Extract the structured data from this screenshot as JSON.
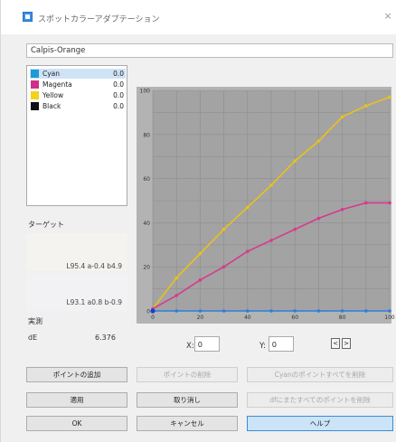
{
  "window": {
    "title": "スポットカラーアダプテーション",
    "close_glyph": "×"
  },
  "spot_name": "Calpis-Orange",
  "inks": [
    {
      "name": "Cyan",
      "value": "0.0",
      "color": "#1e9ad6",
      "selected": true
    },
    {
      "name": "Magenta",
      "value": "0.0",
      "color": "#d12e8a",
      "selected": false
    },
    {
      "name": "Yellow",
      "value": "0.0",
      "color": "#f2d21a",
      "selected": false
    },
    {
      "name": "Black",
      "value": "0.0",
      "color": "#111111",
      "selected": false
    }
  ],
  "target": {
    "label": "ターゲット",
    "lab_1": "L95.4 a-0.4 b4.9",
    "lab_2": "L93.1 a0.8 b-0.9"
  },
  "actual": {
    "label": "実測",
    "delta_label": "dE",
    "delta_value": "6.376"
  },
  "coords": {
    "x_label": "X:",
    "x_value": "0",
    "y_label": "Y:",
    "y_value": "0",
    "prev_glyph": "<",
    "next_glyph": ">"
  },
  "buttons": {
    "add_point": "ポイントの追加",
    "delete_point": "ポイントの削除",
    "clear_cyan_points": "Cyanのポイントすべてを削除",
    "apply": "適用",
    "undo": "取り消し",
    "clear_all_points": "dfにまたすべてのポイントを削除",
    "ok": "OK",
    "cancel": "キャンセル",
    "help": "ヘルプ"
  },
  "chart_data": {
    "type": "line",
    "xlim": [
      0,
      100
    ],
    "ylim": [
      0,
      100
    ],
    "x_ticks": [
      0,
      20,
      40,
      60,
      80,
      100
    ],
    "y_ticks": [
      0,
      20,
      40,
      60,
      80,
      100
    ],
    "x_tick_labels": [
      "0",
      "20",
      "40",
      "60",
      "80",
      "100"
    ],
    "y_tick_labels": [
      "0",
      "20",
      "40",
      "60",
      "80",
      "100"
    ],
    "grid": true,
    "plot_background": "#a3a3a3",
    "series": [
      {
        "color": "#e8c21c",
        "x": [
          0,
          10,
          20,
          30,
          40,
          50,
          60,
          70,
          80,
          90,
          100
        ],
        "y": [
          1,
          15,
          26,
          37,
          47,
          57,
          68,
          77,
          88,
          93,
          97
        ]
      },
      {
        "color": "#d63a8e",
        "x": [
          0,
          10,
          20,
          30,
          40,
          50,
          60,
          70,
          80,
          90,
          100
        ],
        "y": [
          1,
          7,
          14,
          20,
          27,
          32,
          37,
          42,
          46,
          49,
          49
        ]
      },
      {
        "color": "#2a7fd9",
        "x": [
          0,
          10,
          20,
          30,
          40,
          50,
          60,
          70,
          80,
          90,
          100
        ],
        "y": [
          0,
          0,
          0,
          0,
          0,
          0,
          0,
          0,
          0,
          0,
          0
        ]
      }
    ]
  }
}
